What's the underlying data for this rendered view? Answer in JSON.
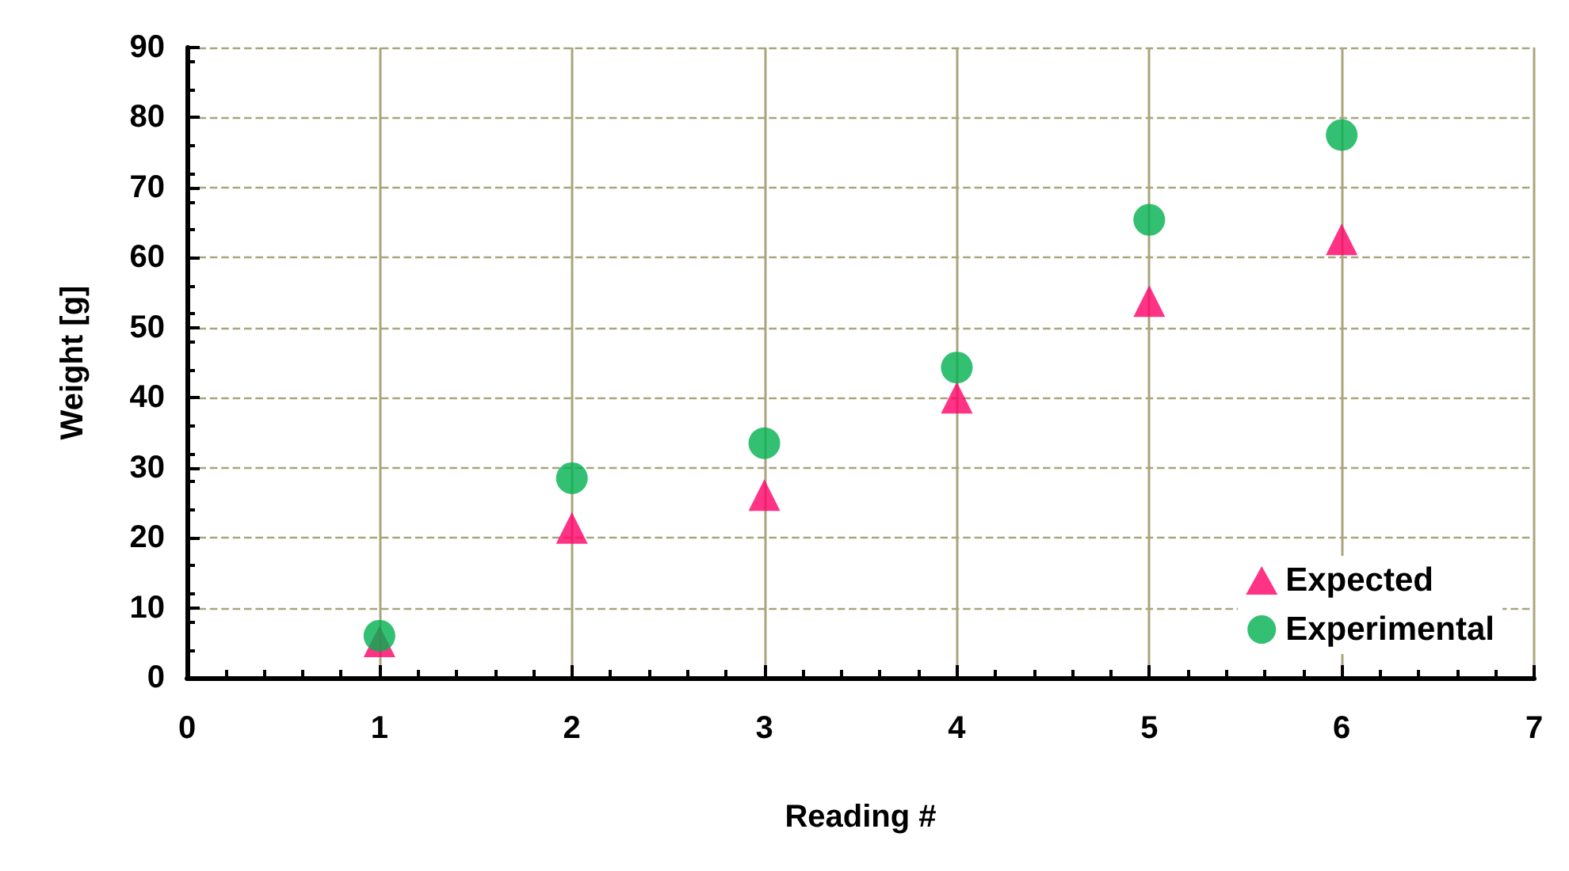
{
  "chart_data": {
    "type": "scatter",
    "xlabel": "Reading #",
    "ylabel": "Weight [g]",
    "x": [
      1,
      2,
      3,
      4,
      5,
      6
    ],
    "series": [
      {
        "name": "Expected",
        "color": "#ff0066",
        "marker": "triangle",
        "values": [
          5.2,
          21.4,
          26.1,
          40,
          53.8,
          62.6
        ]
      },
      {
        "name": "Experimental",
        "color": "#00b050",
        "marker": "circle",
        "values": [
          6,
          28.5,
          33.5,
          44.3,
          65.4,
          77.5
        ]
      }
    ],
    "xlim": [
      0,
      7
    ],
    "xticks": [
      0,
      1,
      2,
      3,
      4,
      5,
      6,
      7
    ],
    "ylim": [
      0,
      90
    ],
    "yticks": [
      0,
      10,
      20,
      30,
      40,
      50,
      60,
      70,
      80,
      90
    ],
    "grid": true,
    "legend": "bottom right"
  }
}
